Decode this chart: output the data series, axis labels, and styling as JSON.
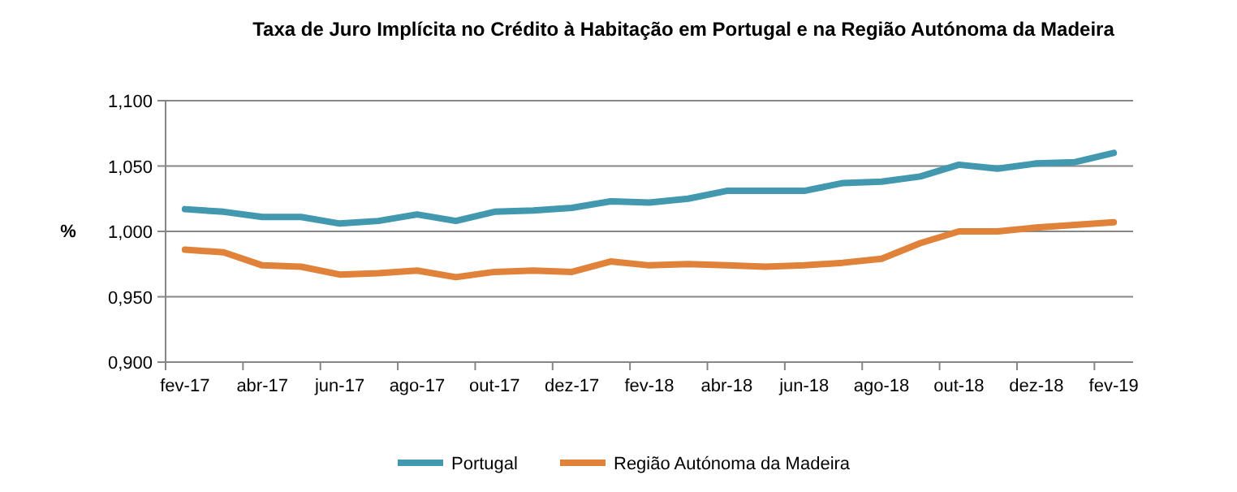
{
  "chart_data": {
    "type": "line",
    "title": "Taxa de Juro Implícita no Crédito à Habitação em Portugal e na Região Autónoma da Madeira",
    "ylabel": "%",
    "categories": [
      "fev-17",
      null,
      "abr-17",
      null,
      "jun-17",
      null,
      "ago-17",
      null,
      "out-17",
      null,
      "dez-17",
      null,
      "fev-18",
      null,
      "abr-18",
      null,
      "jun-18",
      null,
      "ago-18",
      null,
      "out-18",
      null,
      "dez-18",
      null,
      "fev-19"
    ],
    "series": [
      {
        "name": "Portugal",
        "color": "#4299af",
        "values": [
          1.017,
          1.015,
          1.011,
          1.011,
          1.006,
          1.008,
          1.013,
          1.008,
          1.015,
          1.016,
          1.018,
          1.023,
          1.022,
          1.025,
          1.031,
          1.031,
          1.031,
          1.037,
          1.038,
          1.042,
          1.051,
          1.048,
          1.052,
          1.053,
          1.06
        ]
      },
      {
        "name": "Região Autónoma da Madeira",
        "color": "#e0823a",
        "values": [
          0.986,
          0.984,
          0.974,
          0.973,
          0.967,
          0.968,
          0.97,
          0.965,
          0.969,
          0.97,
          0.969,
          0.977,
          0.974,
          0.975,
          0.974,
          0.973,
          0.974,
          0.976,
          0.979,
          0.991,
          1.0,
          1.0,
          1.003,
          1.005,
          1.007
        ]
      }
    ],
    "ylim": [
      0.9,
      1.1
    ],
    "yticks": [
      {
        "value": 0.9,
        "label": "0,900"
      },
      {
        "value": 0.95,
        "label": "0,950"
      },
      {
        "value": 1.0,
        "label": "1,000"
      },
      {
        "value": 1.05,
        "label": "1,050"
      },
      {
        "value": 1.1,
        "label": "1,100"
      }
    ],
    "grid": "y",
    "legend": "bottom",
    "marker": "none",
    "line_style": "solid"
  }
}
